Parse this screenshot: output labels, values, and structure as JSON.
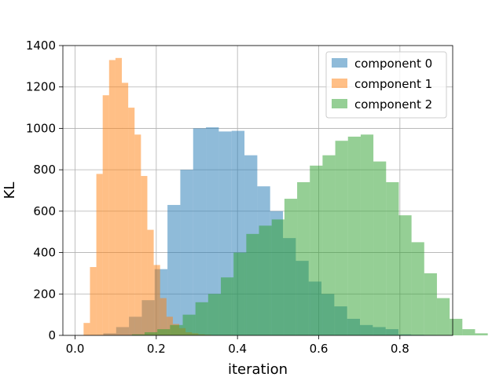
{
  "chart_data": {
    "type": "histogram",
    "xlabel": "iteration",
    "ylabel": "KL",
    "xlim": [
      -0.03,
      0.93
    ],
    "ylim": [
      0,
      1400
    ],
    "xticks": [
      0.0,
      0.2,
      0.4,
      0.6,
      0.8
    ],
    "xtick_labels": [
      "0.0",
      "0.2",
      "0.4",
      "0.6",
      "0.8"
    ],
    "yticks": [
      0,
      200,
      400,
      600,
      800,
      1000,
      1200,
      1400
    ],
    "ytick_labels": [
      "0",
      "200",
      "400",
      "600",
      "800",
      "1000",
      "1200",
      "1400"
    ],
    "grid": true,
    "legend_position": "upper right",
    "series": [
      {
        "name": "component 0",
        "color": "#1f77b4",
        "alpha": 0.5,
        "bin_start": 0.038,
        "bin_width": 0.0316,
        "values": [
          2,
          10,
          40,
          90,
          170,
          320,
          630,
          800,
          1000,
          1005,
          985,
          988,
          870,
          720,
          600,
          470,
          360,
          260,
          200,
          140,
          80,
          50,
          40,
          30,
          5,
          3,
          2,
          1,
          0,
          0
        ]
      },
      {
        "name": "component 1",
        "color": "#ff7f0e",
        "alpha": 0.5,
        "bin_start": 0.021,
        "bin_width": 0.0157,
        "values": [
          60,
          330,
          780,
          1160,
          1330,
          1340,
          1220,
          1100,
          970,
          770,
          510,
          340,
          180,
          90,
          55,
          35,
          15,
          10,
          5,
          3
        ]
      },
      {
        "name": "component 2",
        "color": "#2ca02c",
        "alpha": 0.5,
        "bin_start": 0.14,
        "bin_width": 0.0313,
        "values": [
          5,
          15,
          30,
          50,
          100,
          160,
          200,
          280,
          400,
          490,
          530,
          560,
          660,
          740,
          820,
          870,
          940,
          960,
          970,
          840,
          740,
          580,
          450,
          300,
          180,
          80,
          30,
          10
        ]
      }
    ]
  }
}
